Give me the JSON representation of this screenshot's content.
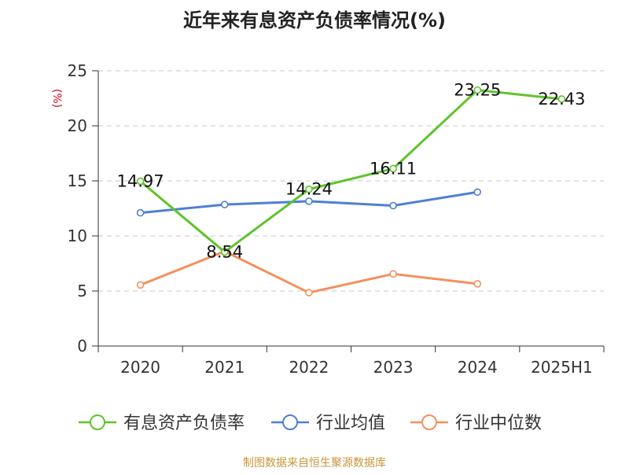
{
  "chart_data": {
    "type": "line",
    "title": "近年来有息资产负债率情况(%)",
    "ylabel": "(%)",
    "xlabel": "",
    "categories": [
      "2020",
      "2021",
      "2022",
      "2023",
      "2024",
      "2025H1"
    ],
    "ylim": [
      0,
      25
    ],
    "yticks": [
      0,
      5,
      10,
      15,
      20,
      25
    ],
    "grid": true,
    "legend_position": "bottom",
    "series": [
      {
        "name": "有息资产负债率",
        "color": "#5ec42b",
        "values": [
          14.97,
          8.54,
          14.24,
          16.11,
          23.25,
          22.43
        ],
        "labels": [
          "14.97",
          "8.54",
          "14.24",
          "16.11",
          "23.25",
          "22.43"
        ]
      },
      {
        "name": "行业均值",
        "color": "#4f7fd6",
        "values": [
          12.1,
          12.85,
          13.15,
          12.75,
          13.98,
          null
        ]
      },
      {
        "name": "行业中位数",
        "color": "#f4905f",
        "values": [
          5.55,
          8.6,
          4.85,
          6.55,
          5.65,
          null
        ]
      }
    ],
    "source": "制图数据来自恒生聚源数据库"
  }
}
